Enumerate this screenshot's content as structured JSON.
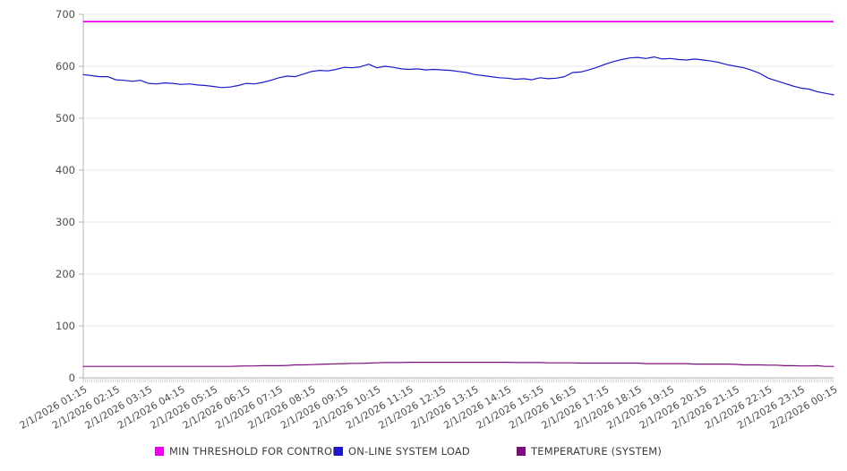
{
  "chart_data": {
    "type": "line",
    "title": "",
    "xlabel": "",
    "ylabel": "",
    "ylim": [
      0,
      700
    ],
    "yticks": [
      0,
      100,
      200,
      300,
      400,
      500,
      600,
      700
    ],
    "grid": "horizontal",
    "legend_position": "bottom",
    "x_interval_minutes": 15,
    "x_labels": [
      "2/1/2026 01:15",
      "2/1/2026 02:15",
      "2/1/2026 03:15",
      "2/1/2026 04:15",
      "2/1/2026 05:15",
      "2/1/2026 06:15",
      "2/1/2026 07:15",
      "2/1/2026 08:15",
      "2/1/2026 09:15",
      "2/1/2026 10:15",
      "2/1/2026 11:15",
      "2/1/2026 12:15",
      "2/1/2026 13:15",
      "2/1/2026 14:15",
      "2/1/2026 15:15",
      "2/1/2026 16:15",
      "2/1/2026 17:15",
      "2/1/2026 18:15",
      "2/1/2026 19:15",
      "2/1/2026 20:15",
      "2/1/2026 21:15",
      "2/1/2026 22:15",
      "2/1/2026 23:15",
      "2/2/2026 00:15"
    ],
    "series": [
      {
        "name": "MIN THRESHOLD FOR CONTROL",
        "color": "#ee00ee",
        "constant_value": 686
      },
      {
        "name": "ON-LINE SYSTEM LOAD",
        "color": "#1a1ac8",
        "values": [
          584,
          582,
          580,
          580,
          574,
          573,
          571,
          573,
          567,
          566,
          568,
          567,
          565,
          566,
          564,
          563,
          561,
          559,
          560,
          563,
          567,
          566,
          569,
          573,
          578,
          581,
          580,
          585,
          590,
          592,
          591,
          594,
          598,
          597,
          599,
          604,
          597,
          600,
          598,
          595,
          594,
          595,
          593,
          594,
          593,
          592,
          590,
          588,
          584,
          582,
          580,
          578,
          577,
          575,
          576,
          574,
          578,
          576,
          577,
          580,
          588,
          589,
          593,
          598,
          604,
          609,
          613,
          616,
          617,
          615,
          618,
          614,
          615,
          613,
          612,
          614,
          612,
          610,
          607,
          603,
          600,
          597,
          592,
          586,
          577,
          572,
          567,
          562,
          558,
          556,
          551,
          548,
          545
        ]
      },
      {
        "name": "TEMPERATURE (SYSTEM)",
        "color": "#7b0c7e",
        "values": [
          22,
          22,
          22,
          22,
          22,
          22,
          22,
          22,
          22,
          22,
          22,
          22,
          22,
          22,
          22,
          22,
          22,
          22,
          22,
          22.5,
          23,
          23,
          23.5,
          23.5,
          23.5,
          24,
          25,
          25,
          25.5,
          26,
          26.5,
          27,
          27.5,
          28,
          28,
          28.5,
          29,
          29.5,
          29.5,
          29.5,
          30,
          30,
          30,
          30,
          30,
          30,
          30,
          30,
          30,
          30,
          30,
          30,
          30,
          29.5,
          29.5,
          29.5,
          29.5,
          29,
          29,
          29,
          29,
          28.5,
          28.5,
          28.5,
          28.5,
          28.5,
          28.5,
          28.5,
          28.5,
          27.5,
          27.5,
          27.5,
          27.5,
          27.5,
          27.5,
          26.5,
          26.5,
          26.5,
          26.5,
          26.5,
          26,
          25,
          25,
          25,
          24.5,
          24.5,
          23.5,
          23.5,
          23,
          23,
          23.5,
          22,
          22
        ]
      }
    ]
  }
}
